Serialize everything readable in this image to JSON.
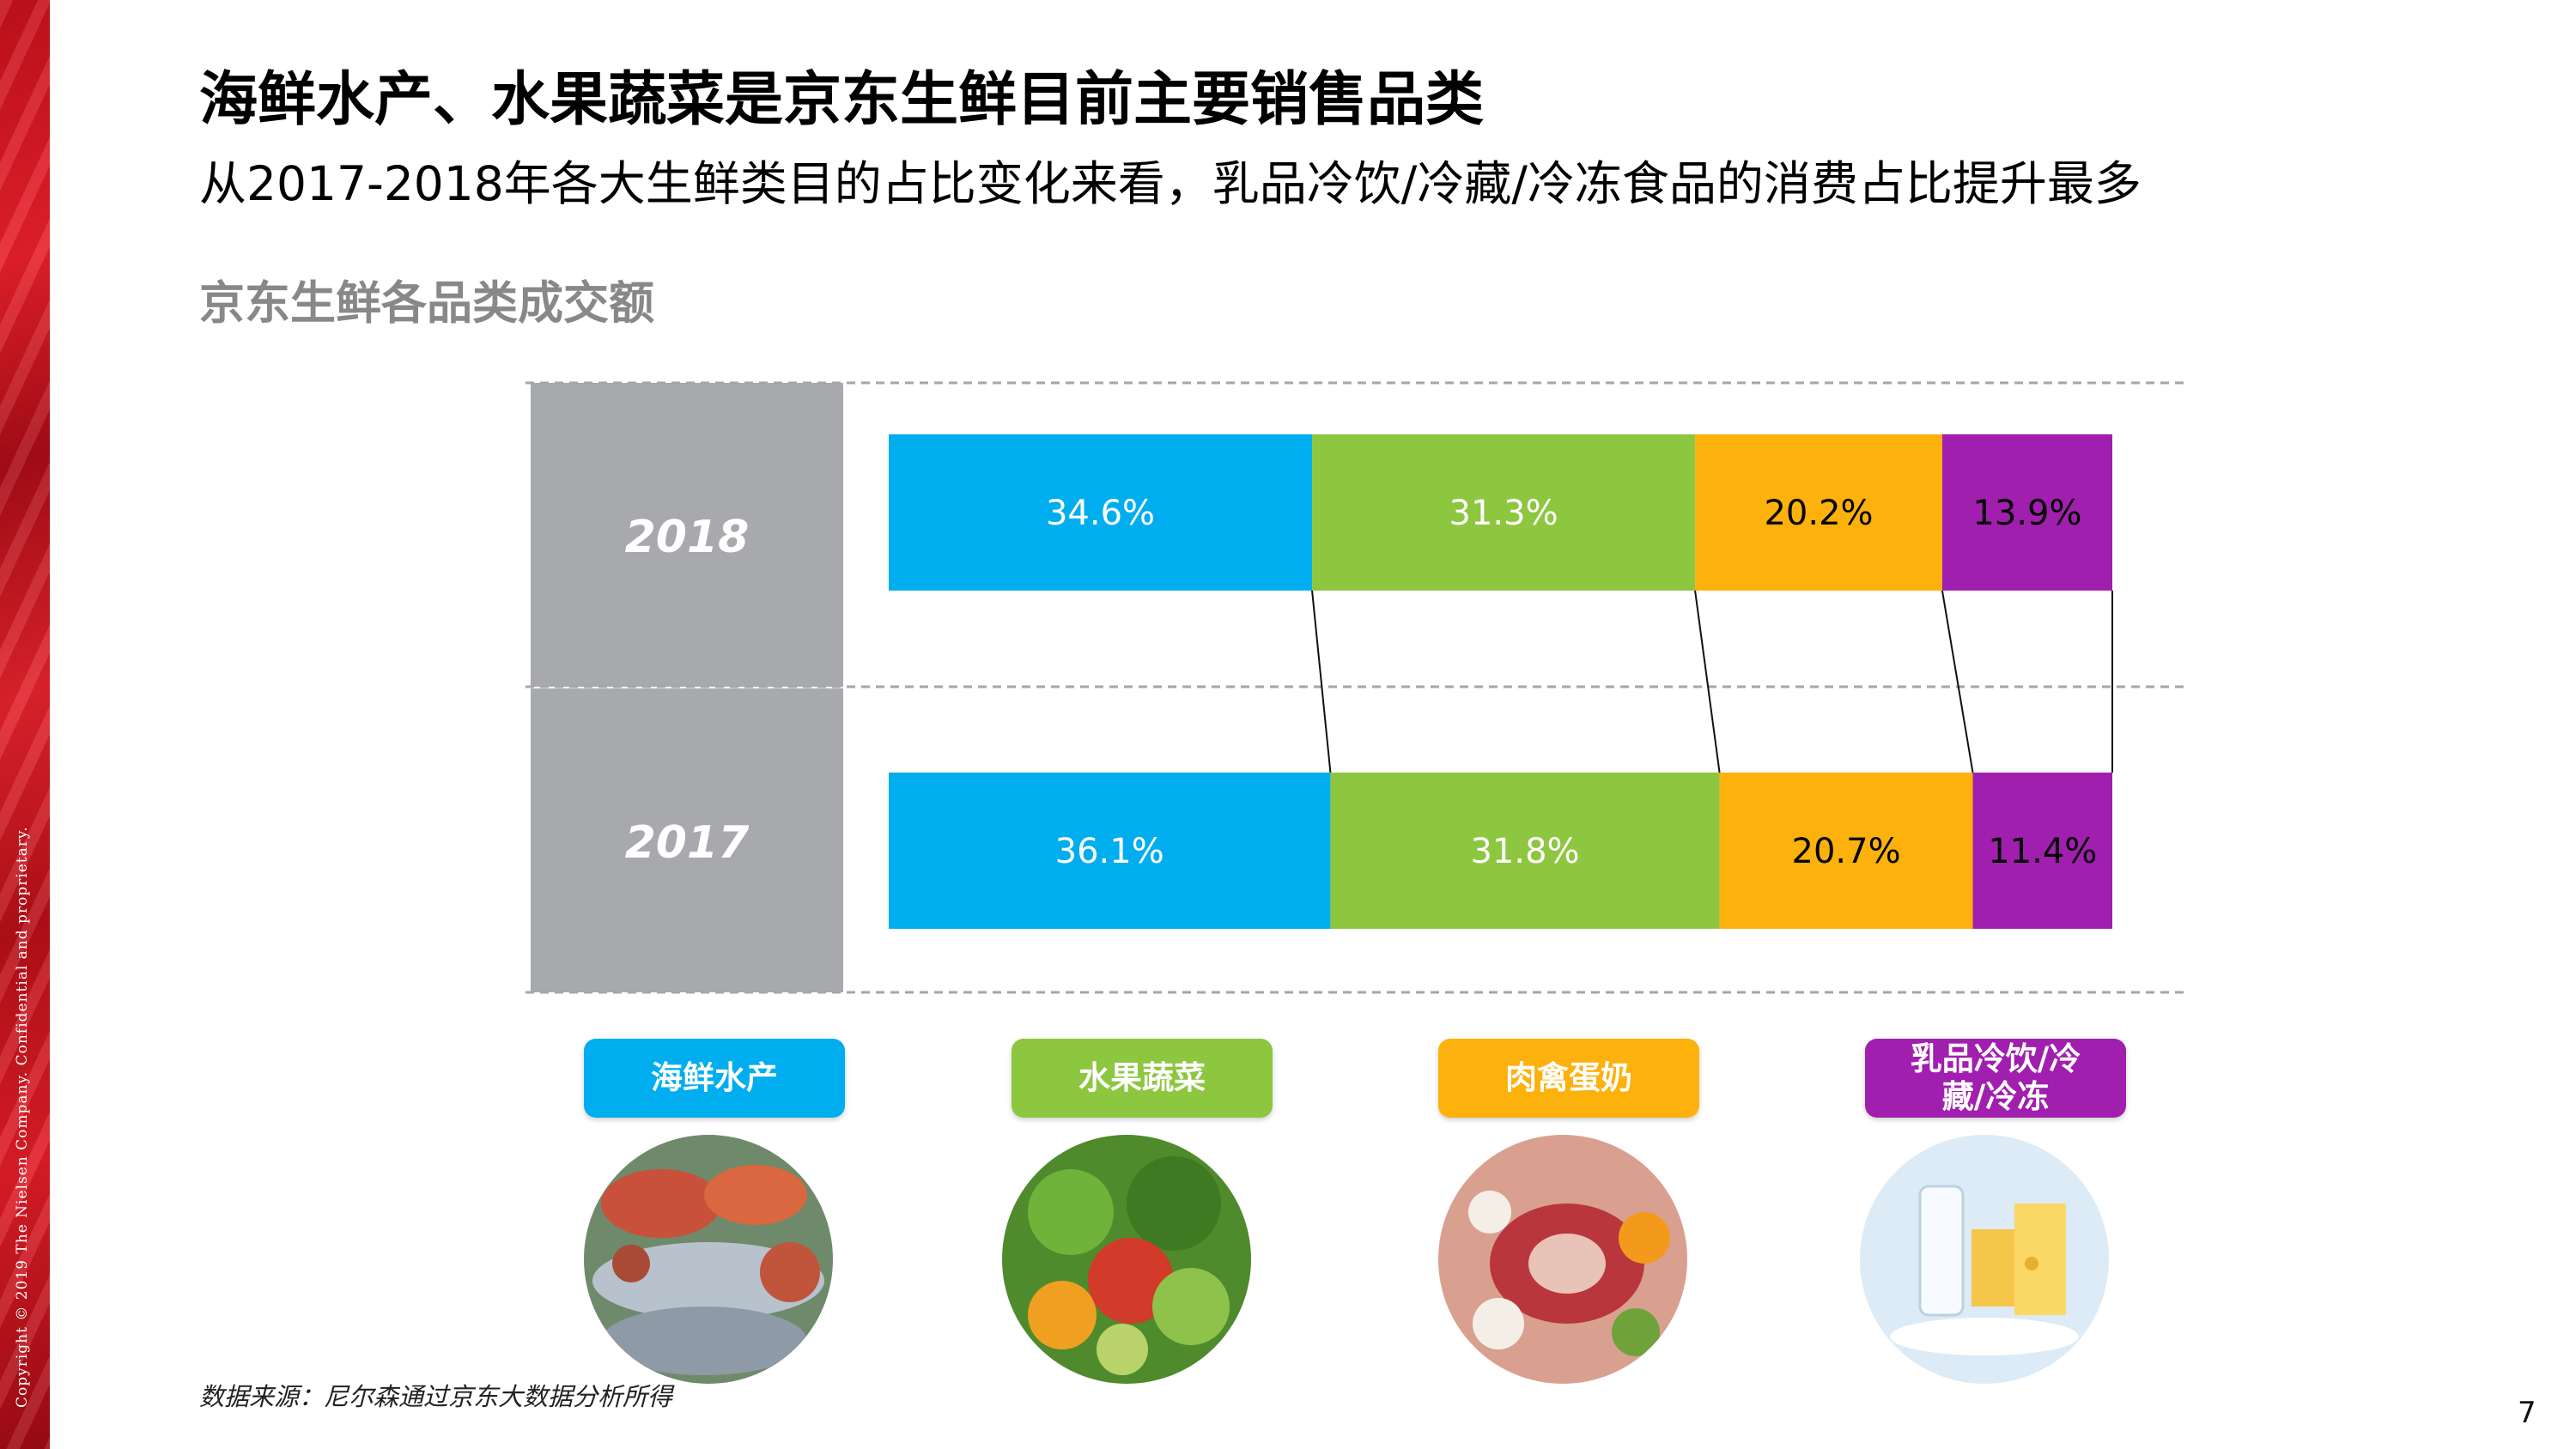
{
  "copyright": "Copyright © 2019 The Nielsen Company. Confidential and proprietary.",
  "title": "海鲜水产、水果蔬菜是京东生鲜目前主要销售品类",
  "subtitle": "从2017-2018年各大生鲜类目的占比变化来看，乳品冷饮/冷藏/冷冻食品的消费占比提升最多",
  "chart_heading": "京东生鲜各品类成交额",
  "colors": {
    "seafood": "#00adee",
    "fruit_veg": "#8dc63f",
    "meat": "#fdb10d",
    "dairy": "#a11fae",
    "year_panel": "#a7a9ac",
    "gridline": "#a6a6a6"
  },
  "chart_data": {
    "type": "bar",
    "orientation": "horizontal",
    "stacked": true,
    "normalized": true,
    "categories": [
      "2018",
      "2017"
    ],
    "series": [
      {
        "name": "海鲜水产",
        "values": [
          34.6,
          36.1
        ],
        "labels": [
          "34.6%",
          "36.1%"
        ],
        "color": "#00adee",
        "label_color": "#ffffff"
      },
      {
        "name": "水果蔬菜",
        "values": [
          31.3,
          31.8
        ],
        "labels": [
          "31.3%",
          "31.8%"
        ],
        "color": "#8dc63f",
        "label_color": "#ffffff"
      },
      {
        "name": "肉禽蛋奶",
        "values": [
          20.2,
          20.7
        ],
        "labels": [
          "20.2%",
          "20.7%"
        ],
        "color": "#fdb10d",
        "label_color": "#000000"
      },
      {
        "name": "乳品冷饮/冷藏/冷冻",
        "values": [
          13.9,
          11.4
        ],
        "labels": [
          "13.9%",
          "11.4%"
        ],
        "color": "#a11fae",
        "label_color": "#000000"
      }
    ],
    "xlim": [
      0,
      100
    ],
    "legend_position": "bottom",
    "grid": "dashed horizontal separators",
    "connector_lines": true
  },
  "legend": [
    {
      "label": "海鲜水产",
      "color": "#00adee",
      "icon": "seafood-photo"
    },
    {
      "label": "水果蔬菜",
      "color": "#8dc63f",
      "icon": "fruit-vegetable-photo"
    },
    {
      "label": "肉禽蛋奶",
      "color": "#fdb10d",
      "icon": "meat-egg-photo"
    },
    {
      "label": "乳品冷饮/冷藏/冷冻",
      "color": "#a11fae",
      "icon": "dairy-photo"
    }
  ],
  "source": "数据来源：尼尔森通过京东大数据分析所得",
  "page_number": "7"
}
